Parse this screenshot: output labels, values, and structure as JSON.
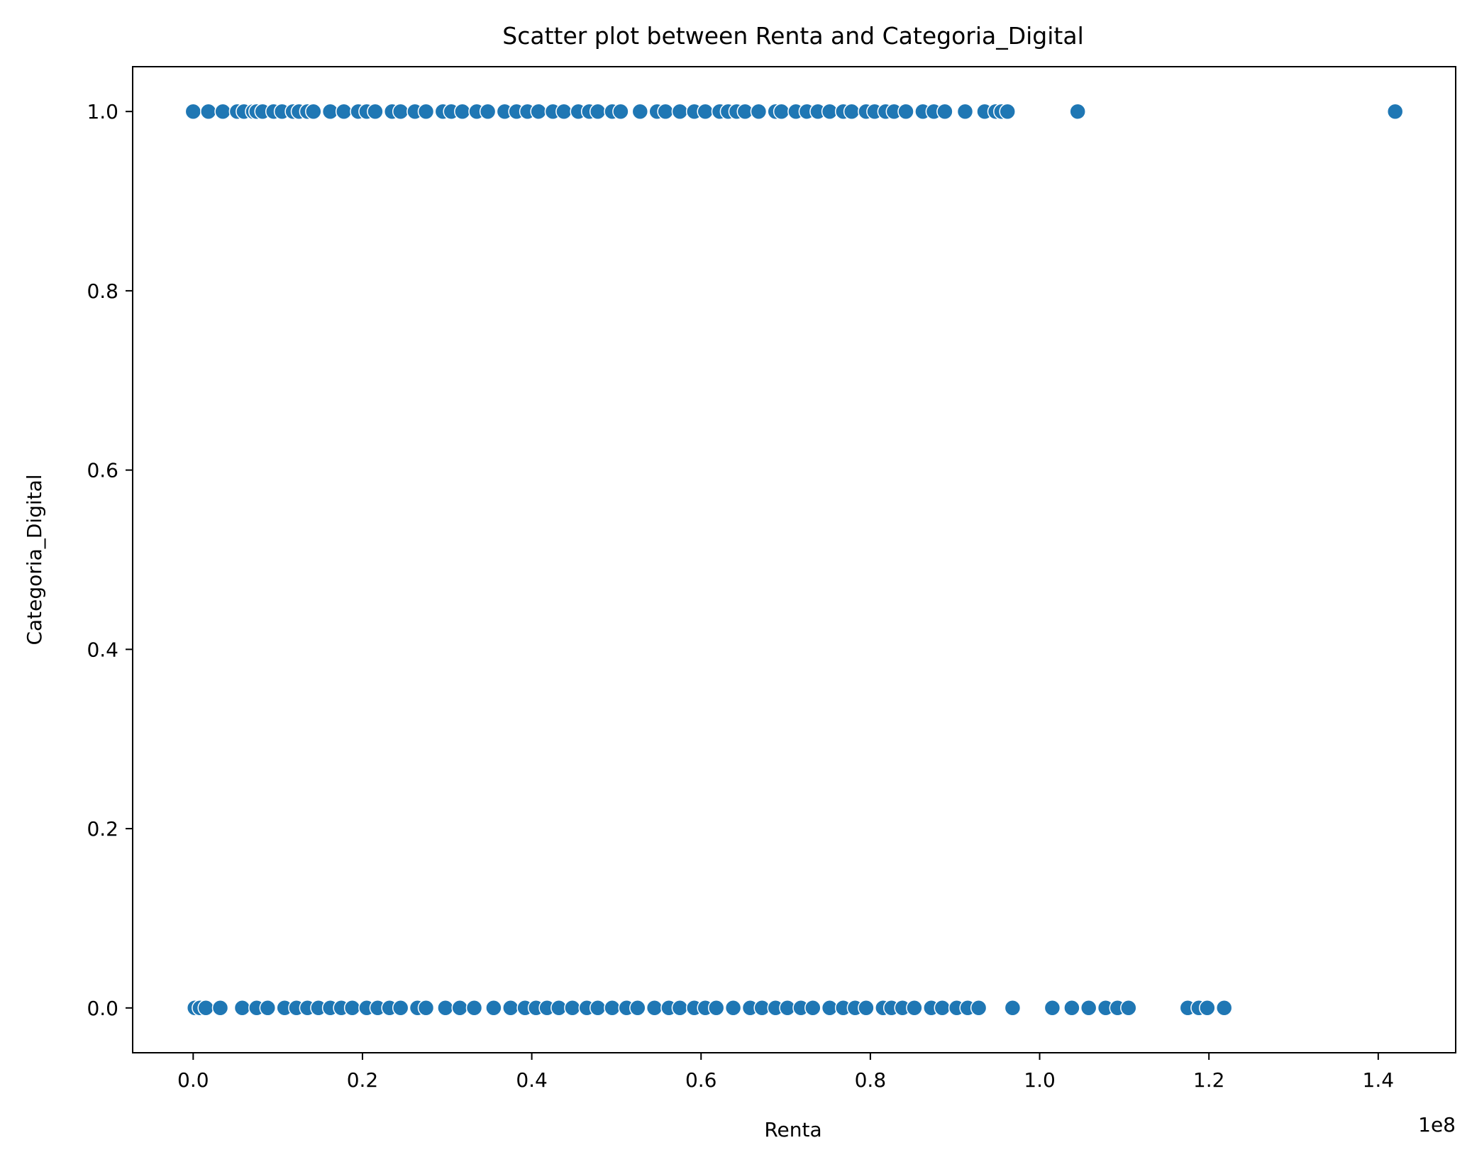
{
  "chart_data": {
    "type": "scatter",
    "title": "Scatter plot between Renta and Categoria_Digital",
    "xlabel": "Renta",
    "ylabel": "Categoria_Digital",
    "x_offset_label": "1e8",
    "xlim": [
      -0.0715,
      1.4915
    ],
    "ylim": [
      -0.05,
      1.05
    ],
    "x_scale": 100000000.0,
    "grid": false,
    "x_ticks": [
      {
        "value": 0.0,
        "label": "0.0"
      },
      {
        "value": 0.2,
        "label": "0.2"
      },
      {
        "value": 0.4,
        "label": "0.4"
      },
      {
        "value": 0.6,
        "label": "0.6"
      },
      {
        "value": 0.8,
        "label": "0.8"
      },
      {
        "value": 1.0,
        "label": "1.0"
      },
      {
        "value": 1.2,
        "label": "1.2"
      },
      {
        "value": 1.4,
        "label": "1.4"
      }
    ],
    "y_ticks": [
      {
        "value": 0.0,
        "label": "0.0"
      },
      {
        "value": 0.2,
        "label": "0.2"
      },
      {
        "value": 0.4,
        "label": "0.4"
      },
      {
        "value": 0.6,
        "label": "0.6"
      },
      {
        "value": 0.8,
        "label": "0.8"
      },
      {
        "value": 1.0,
        "label": "1.0"
      }
    ],
    "marker_color": "#1f77b4",
    "marker_edge_color": "#ffffff",
    "series": [
      {
        "y": 1.0,
        "x": [
          0.0,
          0.018,
          0.035,
          0.052,
          0.06,
          0.071,
          0.075,
          0.082,
          0.095,
          0.105,
          0.118,
          0.125,
          0.135,
          0.142,
          0.162,
          0.178,
          0.195,
          0.205,
          0.215,
          0.235,
          0.245,
          0.262,
          0.275,
          0.295,
          0.305,
          0.318,
          0.335,
          0.348,
          0.368,
          0.382,
          0.395,
          0.408,
          0.425,
          0.438,
          0.455,
          0.468,
          0.478,
          0.495,
          0.505,
          0.528,
          0.548,
          0.558,
          0.575,
          0.592,
          0.605,
          0.622,
          0.632,
          0.642,
          0.652,
          0.668,
          0.688,
          0.695,
          0.712,
          0.725,
          0.738,
          0.752,
          0.768,
          0.778,
          0.795,
          0.805,
          0.818,
          0.828,
          0.842,
          0.862,
          0.875,
          0.888,
          0.912,
          0.935,
          0.948,
          0.955,
          0.962,
          1.045,
          1.42
        ]
      },
      {
        "y": 0.0,
        "x": [
          0.002,
          0.008,
          0.015,
          0.032,
          0.058,
          0.075,
          0.088,
          0.108,
          0.122,
          0.135,
          0.148,
          0.162,
          0.175,
          0.188,
          0.205,
          0.218,
          0.232,
          0.245,
          0.265,
          0.275,
          0.298,
          0.315,
          0.332,
          0.355,
          0.375,
          0.392,
          0.405,
          0.418,
          0.432,
          0.448,
          0.465,
          0.478,
          0.495,
          0.512,
          0.525,
          0.545,
          0.562,
          0.575,
          0.592,
          0.605,
          0.618,
          0.638,
          0.658,
          0.672,
          0.688,
          0.702,
          0.718,
          0.732,
          0.752,
          0.768,
          0.782,
          0.795,
          0.815,
          0.825,
          0.838,
          0.852,
          0.872,
          0.885,
          0.902,
          0.915,
          0.928,
          0.968,
          1.015,
          1.038,
          1.058,
          1.078,
          1.092,
          1.105,
          1.175,
          1.188,
          1.198,
          1.218
        ]
      }
    ]
  }
}
